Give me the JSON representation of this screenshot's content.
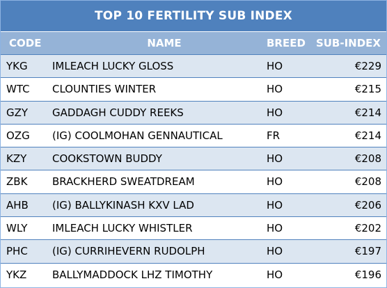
{
  "table": {
    "title": "TOP 10 FERTILITY SUB INDEX",
    "headers": {
      "code": "CODE",
      "name": "NAME",
      "breed": "BREED",
      "sub_index": "SUB-INDEX"
    },
    "rows": [
      {
        "code": "YKG",
        "name": "IMLEACH LUCKY GLOSS",
        "breed": "HO",
        "sub_index": "€229"
      },
      {
        "code": "WTC",
        "name": "CLOUNTIES WINTER",
        "breed": "HO",
        "sub_index": "€215"
      },
      {
        "code": "GZY",
        "name": "GADDAGH CUDDY REEKS",
        "breed": "HO",
        "sub_index": "€214"
      },
      {
        "code": "OZG",
        "name": "(IG) COOLMOHAN GENNAUTICAL",
        "breed": "FR",
        "sub_index": "€214"
      },
      {
        "code": "KZY",
        "name": "COOKSTOWN BUDDY",
        "breed": "HO",
        "sub_index": "€208"
      },
      {
        "code": "ZBK",
        "name": "BRACKHERD SWEATDREAM",
        "breed": "HO",
        "sub_index": "€208"
      },
      {
        "code": "AHB",
        "name": "(IG) BALLYKINASH KXV LAD",
        "breed": "HO",
        "sub_index": "€206"
      },
      {
        "code": "WLY",
        "name": "IMLEACH LUCKY WHISTLER",
        "breed": "HO",
        "sub_index": "€202"
      },
      {
        "code": "PHC",
        "name": "(IG) CURRIHEVERN RUDOLPH",
        "breed": "HO",
        "sub_index": "€197"
      },
      {
        "code": "YKZ",
        "name": "BALLYMADDOCK LHZ TIMOTHY",
        "breed": "HO",
        "sub_index": "€196"
      }
    ]
  }
}
